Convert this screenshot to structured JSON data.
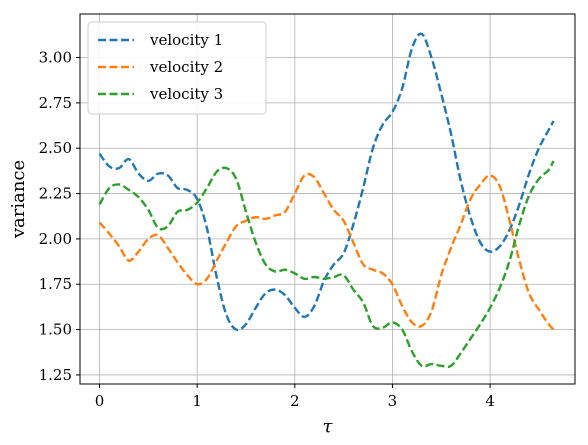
{
  "chart_data": {
    "type": "line",
    "xlabel": "τ",
    "ylabel": "variance",
    "xlim": [
      -0.2,
      4.87
    ],
    "ylim": [
      1.2,
      3.24
    ],
    "grid": true,
    "legend_position": "top-left",
    "x_ticks": [
      0,
      1,
      2,
      3,
      4
    ],
    "y_ticks": [
      1.25,
      1.5,
      1.75,
      2.0,
      2.25,
      2.5,
      2.75,
      3.0
    ],
    "x_tick_labels": [
      "0",
      "1",
      "2",
      "3",
      "4"
    ],
    "y_tick_labels": [
      "1.25",
      "1.50",
      "1.75",
      "2.00",
      "2.25",
      "2.50",
      "2.75",
      "3.00"
    ],
    "series": [
      {
        "name": "velocity 1",
        "color": "#1f77b4",
        "points": [
          [
            0,
            2.47
          ],
          [
            0.1,
            2.4
          ],
          [
            0.2,
            2.39
          ],
          [
            0.3,
            2.44
          ],
          [
            0.4,
            2.36
          ],
          [
            0.5,
            2.32
          ],
          [
            0.6,
            2.36
          ],
          [
            0.7,
            2.35
          ],
          [
            0.8,
            2.28
          ],
          [
            0.9,
            2.27
          ],
          [
            1.0,
            2.22
          ],
          [
            1.1,
            2.06
          ],
          [
            1.2,
            1.79
          ],
          [
            1.3,
            1.58
          ],
          [
            1.4,
            1.5
          ],
          [
            1.5,
            1.53
          ],
          [
            1.6,
            1.62
          ],
          [
            1.7,
            1.7
          ],
          [
            1.8,
            1.72
          ],
          [
            1.9,
            1.69
          ],
          [
            2.0,
            1.62
          ],
          [
            2.1,
            1.57
          ],
          [
            2.2,
            1.63
          ],
          [
            2.3,
            1.77
          ],
          [
            2.4,
            1.86
          ],
          [
            2.5,
            1.92
          ],
          [
            2.6,
            2.08
          ],
          [
            2.7,
            2.28
          ],
          [
            2.8,
            2.5
          ],
          [
            2.9,
            2.63
          ],
          [
            3.0,
            2.7
          ],
          [
            3.1,
            2.83
          ],
          [
            3.2,
            3.05
          ],
          [
            3.3,
            3.13
          ],
          [
            3.4,
            3.0
          ],
          [
            3.5,
            2.8
          ],
          [
            3.6,
            2.58
          ],
          [
            3.7,
            2.32
          ],
          [
            3.8,
            2.12
          ],
          [
            3.9,
            1.98
          ],
          [
            4.0,
            1.93
          ],
          [
            4.1,
            1.96
          ],
          [
            4.2,
            2.05
          ],
          [
            4.3,
            2.19
          ],
          [
            4.4,
            2.36
          ],
          [
            4.5,
            2.5
          ],
          [
            4.6,
            2.6
          ],
          [
            4.65,
            2.65
          ]
        ]
      },
      {
        "name": "velocity 2",
        "color": "#ff7f0e",
        "points": [
          [
            0,
            2.09
          ],
          [
            0.1,
            2.03
          ],
          [
            0.2,
            1.96
          ],
          [
            0.3,
            1.88
          ],
          [
            0.4,
            1.93
          ],
          [
            0.5,
            2.0
          ],
          [
            0.6,
            2.02
          ],
          [
            0.7,
            1.95
          ],
          [
            0.8,
            1.87
          ],
          [
            0.9,
            1.8
          ],
          [
            1.0,
            1.75
          ],
          [
            1.1,
            1.78
          ],
          [
            1.2,
            1.88
          ],
          [
            1.3,
            1.98
          ],
          [
            1.4,
            2.07
          ],
          [
            1.5,
            2.1
          ],
          [
            1.6,
            2.12
          ],
          [
            1.7,
            2.11
          ],
          [
            1.8,
            2.13
          ],
          [
            1.9,
            2.15
          ],
          [
            2.0,
            2.25
          ],
          [
            2.1,
            2.35
          ],
          [
            2.2,
            2.34
          ],
          [
            2.3,
            2.25
          ],
          [
            2.4,
            2.16
          ],
          [
            2.5,
            2.1
          ],
          [
            2.6,
            1.98
          ],
          [
            2.7,
            1.86
          ],
          [
            2.8,
            1.83
          ],
          [
            2.9,
            1.81
          ],
          [
            3.0,
            1.75
          ],
          [
            3.1,
            1.63
          ],
          [
            3.2,
            1.54
          ],
          [
            3.3,
            1.52
          ],
          [
            3.4,
            1.6
          ],
          [
            3.5,
            1.8
          ],
          [
            3.6,
            1.95
          ],
          [
            3.7,
            2.08
          ],
          [
            3.8,
            2.22
          ],
          [
            3.9,
            2.3
          ],
          [
            4.0,
            2.35
          ],
          [
            4.1,
            2.29
          ],
          [
            4.2,
            2.1
          ],
          [
            4.3,
            1.88
          ],
          [
            4.4,
            1.7
          ],
          [
            4.5,
            1.61
          ],
          [
            4.6,
            1.53
          ],
          [
            4.65,
            1.5
          ]
        ]
      },
      {
        "name": "velocity 3",
        "color": "#2ca02c",
        "points": [
          [
            0,
            2.19
          ],
          [
            0.1,
            2.28
          ],
          [
            0.2,
            2.3
          ],
          [
            0.3,
            2.27
          ],
          [
            0.4,
            2.23
          ],
          [
            0.5,
            2.16
          ],
          [
            0.6,
            2.06
          ],
          [
            0.7,
            2.07
          ],
          [
            0.8,
            2.15
          ],
          [
            0.9,
            2.16
          ],
          [
            1.0,
            2.2
          ],
          [
            1.1,
            2.28
          ],
          [
            1.2,
            2.37
          ],
          [
            1.3,
            2.39
          ],
          [
            1.4,
            2.33
          ],
          [
            1.5,
            2.15
          ],
          [
            1.6,
            1.98
          ],
          [
            1.7,
            1.86
          ],
          [
            1.8,
            1.82
          ],
          [
            1.9,
            1.83
          ],
          [
            2.0,
            1.81
          ],
          [
            2.1,
            1.78
          ],
          [
            2.2,
            1.79
          ],
          [
            2.3,
            1.78
          ],
          [
            2.4,
            1.79
          ],
          [
            2.5,
            1.8
          ],
          [
            2.6,
            1.72
          ],
          [
            2.7,
            1.65
          ],
          [
            2.8,
            1.52
          ],
          [
            2.9,
            1.51
          ],
          [
            3.0,
            1.54
          ],
          [
            3.1,
            1.5
          ],
          [
            3.2,
            1.38
          ],
          [
            3.3,
            1.3
          ],
          [
            3.4,
            1.31
          ],
          [
            3.5,
            1.3
          ],
          [
            3.6,
            1.3
          ],
          [
            3.7,
            1.37
          ],
          [
            3.8,
            1.45
          ],
          [
            3.9,
            1.53
          ],
          [
            4.0,
            1.62
          ],
          [
            4.1,
            1.73
          ],
          [
            4.2,
            1.88
          ],
          [
            4.3,
            2.08
          ],
          [
            4.4,
            2.24
          ],
          [
            4.5,
            2.33
          ],
          [
            4.6,
            2.38
          ],
          [
            4.65,
            2.43
          ]
        ]
      }
    ]
  }
}
